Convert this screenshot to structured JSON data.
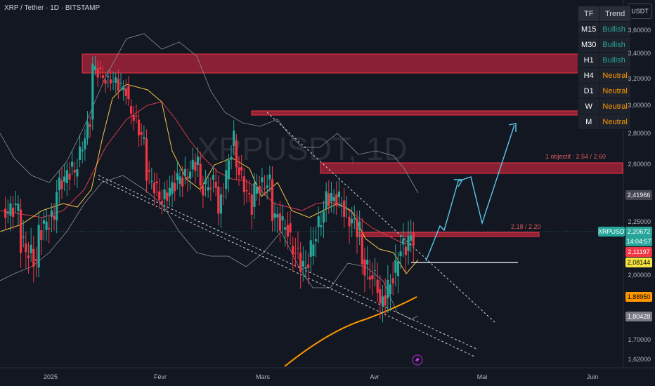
{
  "header": {
    "title": "XRP / Tether · 1D · BITSTAMP",
    "currency_button": "USDT"
  },
  "trend_table": {
    "headers": [
      "TF",
      "Trend"
    ],
    "rows": [
      {
        "tf": "M15",
        "trend": "Bullish",
        "color": "#26a69a"
      },
      {
        "tf": "M30",
        "trend": "Bullish",
        "color": "#26a69a"
      },
      {
        "tf": "H1",
        "trend": "Bullish",
        "color": "#26a69a"
      },
      {
        "tf": "H4",
        "trend": "Neutral",
        "color": "#ff9800"
      },
      {
        "tf": "D1",
        "trend": "Neutral",
        "color": "#ff9800"
      },
      {
        "tf": "W",
        "trend": "Neutral",
        "color": "#ff9800"
      },
      {
        "tf": "M",
        "trend": "Neutral",
        "color": "#ff9800"
      }
    ]
  },
  "price_axis": {
    "ticks": [
      "3,60000",
      "3,40000",
      "3,20000",
      "3,00000",
      "2,80000",
      "2,60000",
      "2,25000",
      "2,00000",
      "1,70000",
      "1,62000"
    ],
    "tick_values": [
      3.6,
      3.4,
      3.2,
      3.0,
      2.8,
      2.6,
      2.25,
      2.0,
      1.7,
      1.62
    ]
  },
  "time_axis": {
    "labels": [
      "2025",
      "Févr",
      "Mars",
      "Avr",
      "Mai",
      "Juin"
    ]
  },
  "price_tags": [
    {
      "text": "2,41966",
      "value": 2.42,
      "bg": "#434651",
      "fg": "#ffffff"
    },
    {
      "text": "XRPUSDT",
      "value": 2.205,
      "bg": "#26a69a",
      "fg": "#ffffff"
    },
    {
      "text": "2,20672",
      "value": 2.2067,
      "bg": "#26a69a",
      "fg": "#ffffff"
    },
    {
      "text": "14:04:57",
      "value": 2.16,
      "bg": "#26a69a",
      "fg": "#ffffff"
    },
    {
      "text": "2,11197",
      "value": 2.112,
      "bg": "#f23645",
      "fg": "#ffffff"
    },
    {
      "text": "2,08144",
      "value": 2.081,
      "bg": "#f5e342",
      "fg": "#000000"
    },
    {
      "text": "1,88950",
      "value": 1.8895,
      "bg": "#ff9800",
      "fg": "#000000"
    },
    {
      "text": "1,80428",
      "value": 1.8043,
      "bg": "#787b86",
      "fg": "#ffffff"
    }
  ],
  "annotations": {
    "objective_1": "1 objectif  : 2.54 / 2.60",
    "objective_2": "2.18 / 2.20",
    "watermark": "XRPUSDT, 1D"
  },
  "colors": {
    "bull": "#26a69a",
    "bear": "#f23645",
    "zone": "#b2243a",
    "projection": "#5bc8e8",
    "ema_short": "#f5c542",
    "ema_long": "#ff9800",
    "ma": "#d73c4a",
    "bands": "#8a8d96"
  }
}
